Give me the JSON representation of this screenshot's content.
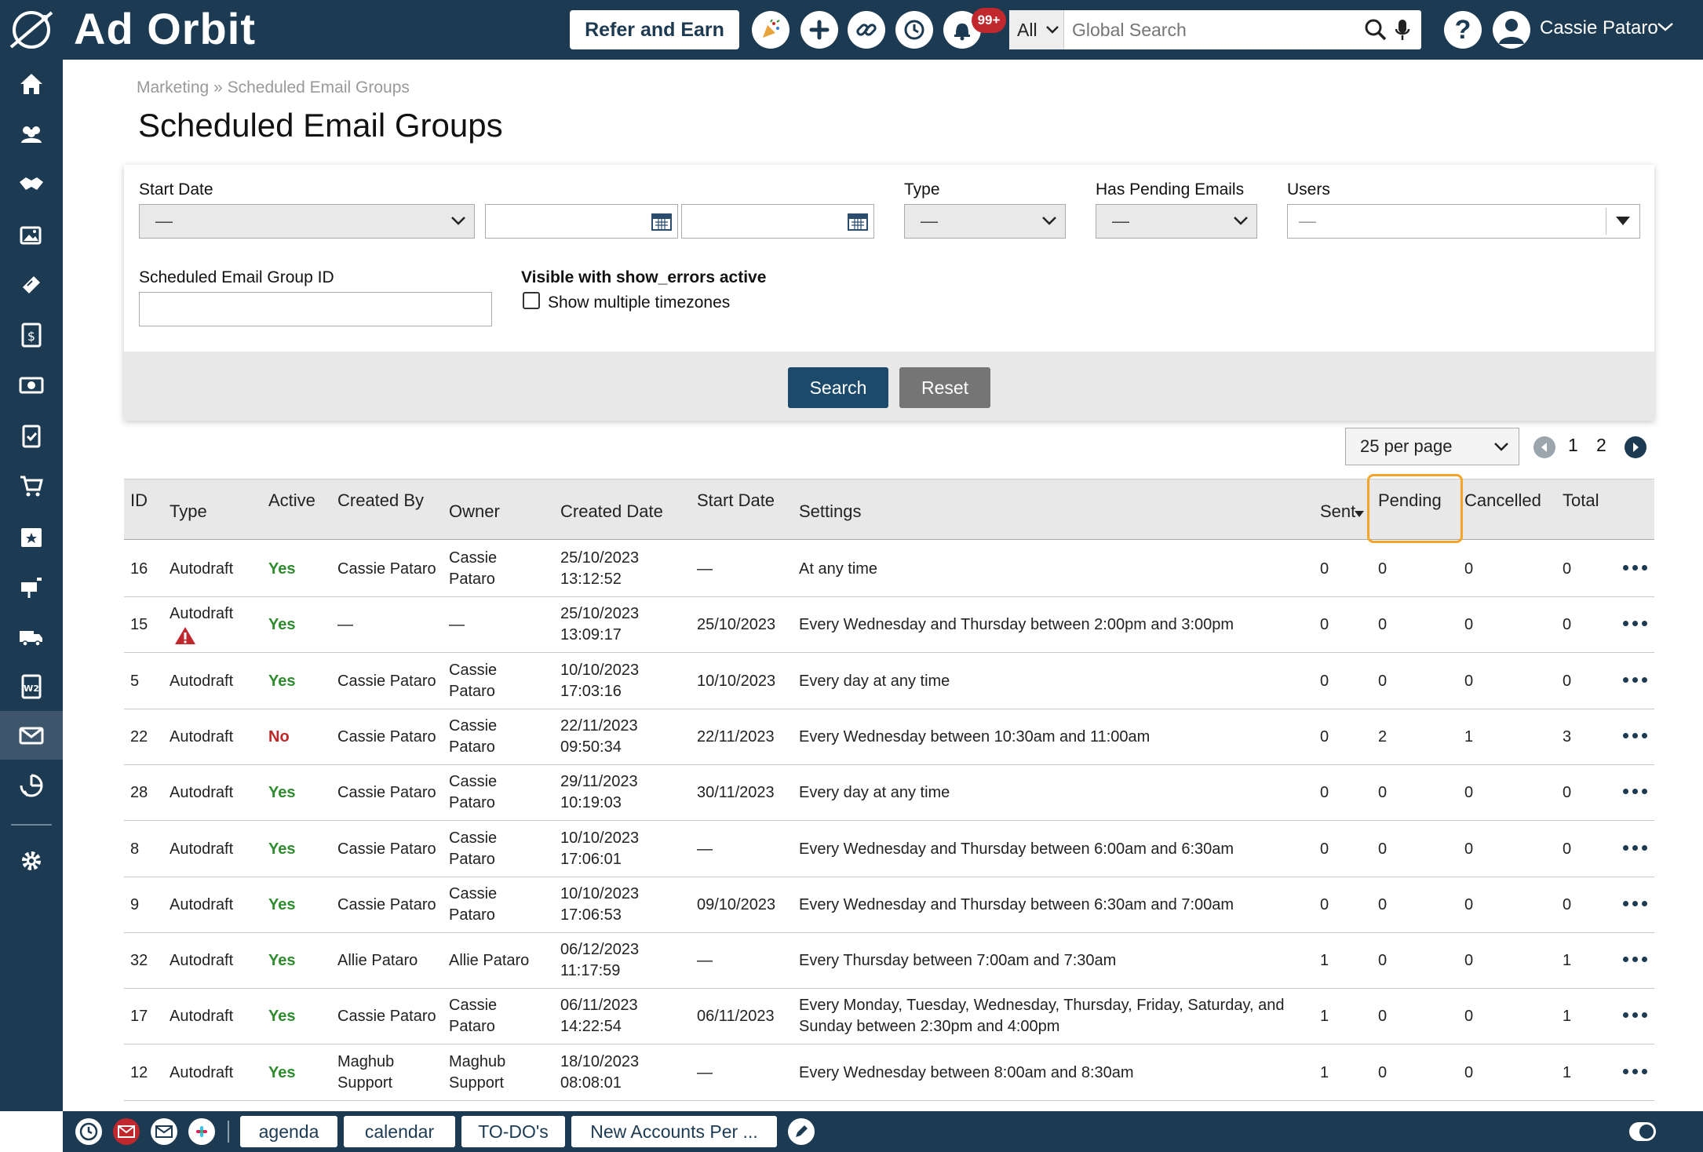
{
  "app": {
    "logo_text": "Ad Orbit",
    "refer_label": "Refer and Earn",
    "notification_badge": "99+",
    "search_scope": "All",
    "search_placeholder": "Global Search",
    "user_name": "Cassie Pataro"
  },
  "breadcrumb": {
    "parent": "Marketing",
    "separator": "»",
    "current": "Scheduled Email Groups"
  },
  "page_title": "Scheduled Email Groups",
  "filters": {
    "start_date_label": "Start Date",
    "start_date_select": "—",
    "type_label": "Type",
    "type_value": "—",
    "pending_label": "Has Pending Emails",
    "pending_value": "—",
    "users_label": "Users",
    "users_value": "—",
    "group_id_label": "Scheduled Email Group ID",
    "show_errors_label": "Visible with show_errors active",
    "timezones_label": "Show multiple timezones",
    "search_button": "Search",
    "reset_button": "Reset"
  },
  "pager": {
    "per_page": "25 per page",
    "pages": [
      "1",
      "2"
    ]
  },
  "table": {
    "headers": {
      "id": "ID",
      "type": "Type",
      "active": "Active",
      "created_by": "Created By",
      "owner": "Owner",
      "created_date": "Created Date",
      "start_date": "Start Date",
      "settings": "Settings",
      "sent": "Sent",
      "pending": "Pending",
      "cancelled": "Cancelled",
      "total": "Total"
    },
    "rows": [
      {
        "id": "16",
        "type": "Autodraft",
        "active": "Yes",
        "created_by": [
          "Cassie Pataro"
        ],
        "owner": [
          "Cassie",
          "Pataro"
        ],
        "created_date": [
          "25/10/2023",
          "13:12:52"
        ],
        "start_date": "—",
        "settings": [
          "At any time"
        ],
        "sent": "0",
        "pending": "0",
        "cancelled": "0",
        "total": "0",
        "warning": false
      },
      {
        "id": "15",
        "type": "Autodraft",
        "active": "Yes",
        "created_by": [
          "—"
        ],
        "owner": [
          "—"
        ],
        "created_date": [
          "25/10/2023",
          "13:09:17"
        ],
        "start_date": "25/10/2023",
        "settings": [
          "Every Wednesday and Thursday between 2:00pm and 3:00pm"
        ],
        "sent": "0",
        "pending": "0",
        "cancelled": "0",
        "total": "0",
        "warning": true
      },
      {
        "id": "5",
        "type": "Autodraft",
        "active": "Yes",
        "created_by": [
          "Cassie Pataro"
        ],
        "owner": [
          "Cassie",
          "Pataro"
        ],
        "created_date": [
          "10/10/2023",
          "17:03:16"
        ],
        "start_date": "10/10/2023",
        "settings": [
          "Every day at any time"
        ],
        "sent": "0",
        "pending": "0",
        "cancelled": "0",
        "total": "0",
        "warning": false
      },
      {
        "id": "22",
        "type": "Autodraft",
        "active": "No",
        "created_by": [
          "Cassie Pataro"
        ],
        "owner": [
          "Cassie",
          "Pataro"
        ],
        "created_date": [
          "22/11/2023",
          "09:50:34"
        ],
        "start_date": "22/11/2023",
        "settings": [
          "Every Wednesday between 10:30am and 11:00am"
        ],
        "sent": "0",
        "pending": "2",
        "cancelled": "1",
        "total": "3",
        "warning": false
      },
      {
        "id": "28",
        "type": "Autodraft",
        "active": "Yes",
        "created_by": [
          "Cassie Pataro"
        ],
        "owner": [
          "Cassie",
          "Pataro"
        ],
        "created_date": [
          "29/11/2023",
          "10:19:03"
        ],
        "start_date": "30/11/2023",
        "settings": [
          "Every day at any time"
        ],
        "sent": "0",
        "pending": "0",
        "cancelled": "0",
        "total": "0",
        "warning": false
      },
      {
        "id": "8",
        "type": "Autodraft",
        "active": "Yes",
        "created_by": [
          "Cassie Pataro"
        ],
        "owner": [
          "Cassie",
          "Pataro"
        ],
        "created_date": [
          "10/10/2023",
          "17:06:01"
        ],
        "start_date": "—",
        "settings": [
          "Every Wednesday and Thursday between 6:00am and 6:30am"
        ],
        "sent": "0",
        "pending": "0",
        "cancelled": "0",
        "total": "0",
        "warning": false
      },
      {
        "id": "9",
        "type": "Autodraft",
        "active": "Yes",
        "created_by": [
          "Cassie Pataro"
        ],
        "owner": [
          "Cassie",
          "Pataro"
        ],
        "created_date": [
          "10/10/2023",
          "17:06:53"
        ],
        "start_date": "09/10/2023",
        "settings": [
          "Every Wednesday and Thursday between 6:30am and 7:00am"
        ],
        "sent": "0",
        "pending": "0",
        "cancelled": "0",
        "total": "0",
        "warning": false
      },
      {
        "id": "32",
        "type": "Autodraft",
        "active": "Yes",
        "created_by": [
          "Allie Pataro"
        ],
        "owner": [
          "Allie Pataro"
        ],
        "created_date": [
          "06/12/2023",
          "11:17:59"
        ],
        "start_date": "—",
        "settings": [
          "Every Thursday between 7:00am and 7:30am"
        ],
        "sent": "1",
        "pending": "0",
        "cancelled": "0",
        "total": "1",
        "warning": false
      },
      {
        "id": "17",
        "type": "Autodraft",
        "active": "Yes",
        "created_by": [
          "Cassie Pataro"
        ],
        "owner": [
          "Cassie",
          "Pataro"
        ],
        "created_date": [
          "06/11/2023",
          "14:22:54"
        ],
        "start_date": "06/11/2023",
        "settings": [
          "Every Monday, Tuesday, Wednesday, Thursday, Friday, Saturday, and",
          "Sunday between 2:30pm and 4:00pm"
        ],
        "sent": "1",
        "pending": "0",
        "cancelled": "0",
        "total": "1",
        "warning": false
      },
      {
        "id": "12",
        "type": "Autodraft",
        "active": "Yes",
        "created_by": [
          "Maghub",
          "Support"
        ],
        "owner": [
          "Maghub",
          "Support"
        ],
        "created_date": [
          "18/10/2023",
          "08:08:01"
        ],
        "start_date": "—",
        "settings": [
          "Every Wednesday between 8:00am and 8:30am"
        ],
        "sent": "1",
        "pending": "0",
        "cancelled": "0",
        "total": "1",
        "warning": false
      }
    ]
  },
  "bottombar": {
    "tabs": [
      "agenda",
      "calendar",
      "TO-DO's",
      "New Accounts Per ..."
    ]
  },
  "colors": {
    "navy": "#1c3a52",
    "yes": "#2e8b2e",
    "no": "#c02828",
    "highlight": "#f2a52a"
  }
}
